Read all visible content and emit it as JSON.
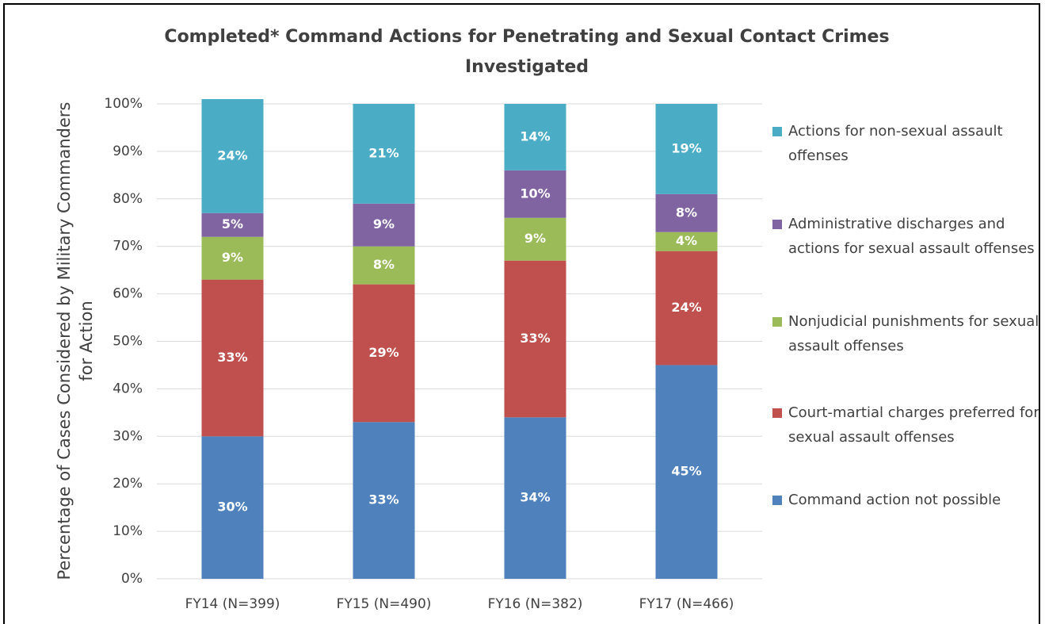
{
  "chart_data": {
    "type": "bar",
    "stacked": true,
    "title": "Completed* Command Actions for Penetrating and Sexual Contact Crimes Investigated",
    "y_label": "Percentage of Cases Considered by Military Commanders for Action",
    "categories": [
      "FY14 (N=399)",
      "FY15 (N=490)",
      "FY16 (N=382)",
      "FY17 (N=466)"
    ],
    "series": [
      {
        "name": "Command action not possible",
        "color": "#4f81bd",
        "values": [
          30,
          33,
          34,
          45
        ],
        "value_labels": [
          "30%",
          "33%",
          "34%",
          "45%"
        ]
      },
      {
        "name": "Court-martial charges preferred for sexual assault offenses",
        "color": "#c0504d",
        "values": [
          33,
          29,
          33,
          24
        ],
        "value_labels": [
          "33%",
          "29%",
          "33%",
          "24%"
        ]
      },
      {
        "name": "Nonjudicial punishments for sexual assault offenses",
        "color": "#9bbb59",
        "values": [
          9,
          8,
          9,
          4
        ],
        "value_labels": [
          "9%",
          "8%",
          "9%",
          "4%"
        ]
      },
      {
        "name": "Administrative discharges and actions for sexual assault offenses",
        "color": "#8064a2",
        "values": [
          5,
          9,
          10,
          8
        ],
        "value_labels": [
          "5%",
          "9%",
          "10%",
          "8%"
        ]
      },
      {
        "name": "Actions for non-sexual assault offenses",
        "color": "#4bacc6",
        "values": [
          24,
          21,
          14,
          19
        ],
        "value_labels": [
          "24%",
          "21%",
          "14%",
          "19%"
        ]
      }
    ],
    "ylim": [
      0,
      100
    ],
    "yticks": [
      {
        "value": 0,
        "label": "0%"
      },
      {
        "value": 10,
        "label": "10%"
      },
      {
        "value": 20,
        "label": "20%"
      },
      {
        "value": 30,
        "label": "30%"
      },
      {
        "value": 40,
        "label": "40%"
      },
      {
        "value": 50,
        "label": "50%"
      },
      {
        "value": 60,
        "label": "60%"
      },
      {
        "value": 70,
        "label": "70%"
      },
      {
        "value": 80,
        "label": "80%"
      },
      {
        "value": 90,
        "label": "90%"
      },
      {
        "value": 100,
        "label": "100%"
      }
    ],
    "grid": true,
    "legend": "right"
  }
}
